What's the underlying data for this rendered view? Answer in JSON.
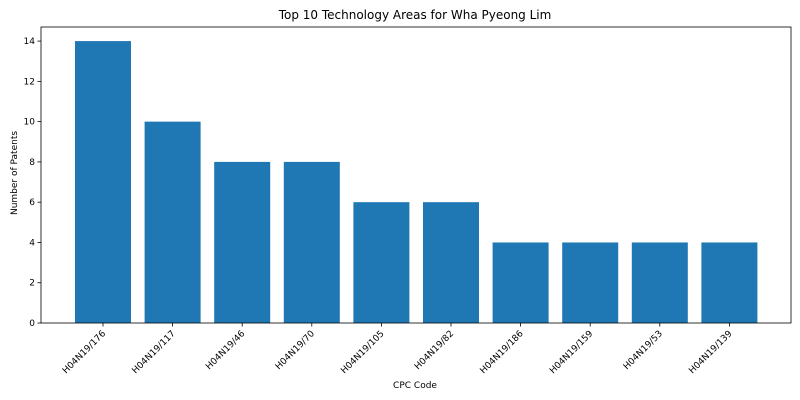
{
  "chart_data": {
    "type": "bar",
    "title": "Top 10 Technology Areas for Wha Pyeong Lim",
    "xlabel": "CPC Code",
    "ylabel": "Number of Patents",
    "categories": [
      "H04N19/176",
      "H04N19/117",
      "H04N19/46",
      "H04N19/70",
      "H04N19/105",
      "H04N19/82",
      "H04N19/186",
      "H04N19/159",
      "H04N19/53",
      "H04N19/139"
    ],
    "values": [
      14,
      10,
      8,
      8,
      6,
      6,
      4,
      4,
      4,
      4
    ],
    "ylim": [
      0,
      14.7
    ],
    "yticks": [
      0,
      2,
      4,
      6,
      8,
      10,
      12,
      14
    ],
    "grid": false,
    "bar_color": "#1f77b4"
  }
}
